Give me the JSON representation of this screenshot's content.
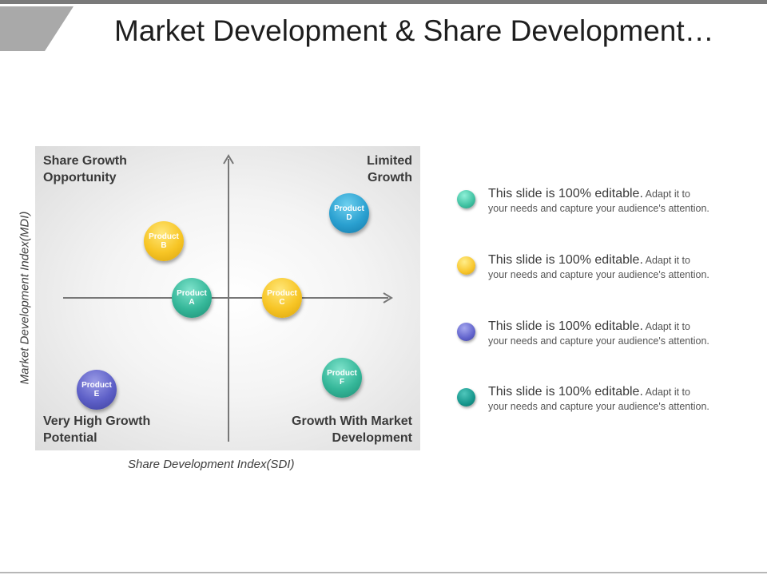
{
  "slide": {
    "title": "Market Development & Share Development…"
  },
  "matrix": {
    "y_axis_label": "Market Development Index(MDI)",
    "x_axis_label": "Share Development Index(SDI)",
    "quadrants": {
      "top_left": [
        "Share Growth",
        "Opportunity"
      ],
      "top_right": [
        "Limited",
        "Growth"
      ],
      "bottom_left": [
        "Very High Growth",
        "Potential"
      ],
      "bottom_right": [
        "Growth With Market",
        "Development"
      ]
    },
    "products": [
      {
        "id": "A",
        "lines": [
          "Product",
          "A"
        ],
        "color": "#35b799"
      },
      {
        "id": "B",
        "lines": [
          "Product",
          "B"
        ],
        "color": "#f7c525"
      },
      {
        "id": "C",
        "lines": [
          "Product",
          "C"
        ],
        "color": "#f7c525"
      },
      {
        "id": "D",
        "lines": [
          "Product",
          "D"
        ],
        "color": "#2aa0d0"
      },
      {
        "id": "E",
        "lines": [
          "Product",
          "E"
        ],
        "color": "#5d5fc7"
      },
      {
        "id": "F",
        "lines": [
          "Product",
          "F"
        ],
        "color": "#35b799"
      }
    ]
  },
  "legend": [
    {
      "strong": "This slide is 100% editable.",
      "rest_1": " Adapt it to",
      "rest_2": "your needs and capture your audience's attention.",
      "color": "#3fc1a1"
    },
    {
      "strong": "This slide is 100% editable.",
      "rest_1": " Adapt it to",
      "rest_2": "your needs and capture your audience's attention.",
      "color": "#f8c62c"
    },
    {
      "strong": "This slide is 100% editable.",
      "rest_1": " Adapt it to",
      "rest_2": "your needs and capture your audience's attention.",
      "color": "#6163cc"
    },
    {
      "strong": "This slide is 100% editable.",
      "rest_1": " Adapt it to",
      "rest_2": "your needs and capture your audience's attention.",
      "color": "#16978d"
    }
  ],
  "colors": {
    "header_bar": "#7a7a7a",
    "header_tab": "#a9a9a9"
  }
}
